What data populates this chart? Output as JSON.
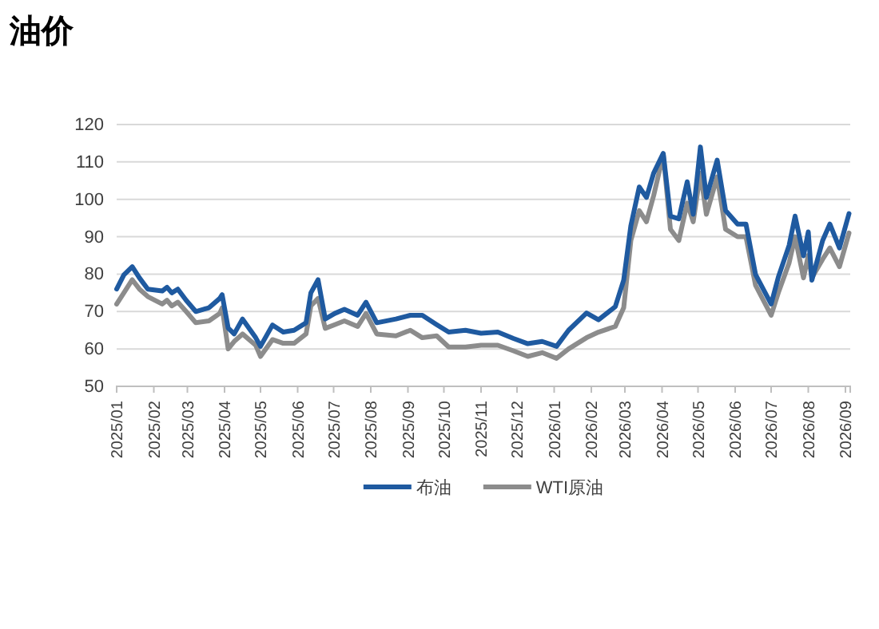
{
  "chart_data": {
    "type": "line",
    "title": "油价",
    "x": [
      "2025-01-01",
      "2025-01-07",
      "2025-01-14",
      "2025-01-20",
      "2025-01-27",
      "2025-02-08",
      "2025-02-12",
      "2025-02-16",
      "2025-02-21",
      "2025-02-28",
      "2025-03-08",
      "2025-03-19",
      "2025-03-28",
      "2025-03-30",
      "2025-04-04",
      "2025-04-09",
      "2025-04-16",
      "2025-04-27",
      "2025-05-01",
      "2025-05-11",
      "2025-05-20",
      "2025-05-29",
      "2025-06-08",
      "2025-06-12",
      "2025-06-18",
      "2025-06-24",
      "2025-07-02",
      "2025-07-10",
      "2025-07-21",
      "2025-07-28",
      "2025-08-06",
      "2025-08-22",
      "2025-09-03",
      "2025-09-13",
      "2025-09-25",
      "2025-10-05",
      "2025-10-19",
      "2025-11-01",
      "2025-11-15",
      "2025-11-28",
      "2025-12-10",
      "2025-12-22",
      "2026-01-03",
      "2026-01-13",
      "2026-01-28",
      "2026-02-07",
      "2026-02-21",
      "2026-02-28",
      "2026-03-06",
      "2026-03-13",
      "2026-03-19",
      "2026-03-25",
      "2026-04-02",
      "2026-04-08",
      "2026-04-15",
      "2026-04-22",
      "2026-04-27",
      "2026-05-03",
      "2026-05-08",
      "2026-05-17",
      "2026-05-24",
      "2026-06-03",
      "2026-06-10",
      "2026-06-18",
      "2026-07-01",
      "2026-07-07",
      "2026-07-16",
      "2026-07-21",
      "2026-07-28",
      "2026-08-01",
      "2026-08-04",
      "2026-08-13",
      "2026-08-19",
      "2026-08-27",
      "2026-09-04"
    ],
    "series": [
      {
        "name": "布油",
        "color": "#1f5aa0",
        "values": [
          76,
          79.8,
          82,
          79,
          76,
          75.5,
          76.5,
          75,
          76,
          73,
          70,
          71,
          73.5,
          74.5,
          65.6,
          64,
          68,
          63,
          60.7,
          66.4,
          64.5,
          65,
          67,
          75,
          78.5,
          68,
          69.5,
          70.6,
          69,
          72.5,
          67,
          68,
          69,
          69,
          66.5,
          64.5,
          65,
          64.2,
          64.5,
          62.8,
          61.4,
          62,
          60.7,
          65,
          69.6,
          67.8,
          71.3,
          78.4,
          93,
          103.3,
          100.5,
          107,
          112.3,
          95.5,
          94.8,
          104.7,
          96,
          114,
          100.5,
          110.5,
          97,
          93.4,
          93.4,
          79.9,
          72,
          79.2,
          87.7,
          95.5,
          84.9,
          91.3,
          78.4,
          89,
          93.4,
          87,
          96.2
        ]
      },
      {
        "name": "WTI原油",
        "color": "#8c8c8c",
        "values": [
          72,
          75,
          78.5,
          76,
          74,
          72,
          73,
          71.5,
          72.5,
          70,
          67,
          67.5,
          69.5,
          71,
          60,
          62,
          64,
          61,
          58,
          62.5,
          61.5,
          61.5,
          64,
          71.5,
          73.5,
          65.5,
          66.5,
          67.5,
          66,
          69.5,
          64,
          63.5,
          65,
          63,
          63.5,
          60.5,
          60.5,
          61,
          61,
          59.5,
          58,
          59,
          57.5,
          60,
          63,
          64.5,
          66,
          71,
          89,
          97,
          94,
          101,
          112,
          92,
          89,
          99,
          94,
          107,
          96,
          106,
          92,
          90,
          90,
          77,
          69,
          75,
          83,
          90,
          79,
          85,
          79,
          84,
          87,
          82,
          91
        ]
      }
    ],
    "xlim": [
      "2025-01-01",
      "2026-09-05"
    ],
    "xticks": [
      {
        "value": "2025-01-01",
        "label": "2025/01"
      },
      {
        "value": "2025-02-01",
        "label": "2025/02"
      },
      {
        "value": "2025-03-01",
        "label": "2025/03"
      },
      {
        "value": "2025-04-01",
        "label": "2025/04"
      },
      {
        "value": "2025-05-01",
        "label": "2025/05"
      },
      {
        "value": "2025-06-01",
        "label": "2025/06"
      },
      {
        "value": "2025-07-01",
        "label": "2025/07"
      },
      {
        "value": "2025-08-01",
        "label": "2025/08"
      },
      {
        "value": "2025-09-01",
        "label": "2025/09"
      },
      {
        "value": "2025-10-01",
        "label": "2025/10"
      },
      {
        "value": "2025-11-01",
        "label": "2025/11"
      },
      {
        "value": "2025-12-01",
        "label": "2025/12"
      },
      {
        "value": "2026-01-01",
        "label": "2026/01"
      },
      {
        "value": "2026-02-01",
        "label": "2026/02"
      },
      {
        "value": "2026-03-01",
        "label": "2026/03"
      },
      {
        "value": "2026-04-01",
        "label": "2026/04"
      },
      {
        "value": "2026-05-01",
        "label": "2026/05"
      },
      {
        "value": "2026-06-01",
        "label": "2026/06"
      },
      {
        "value": "2026-07-01",
        "label": "2026/07"
      },
      {
        "value": "2026-08-01",
        "label": "2026/08"
      },
      {
        "value": "2026-09-01",
        "label": "2026/09"
      }
    ],
    "ylim": [
      50,
      120
    ],
    "yticks": [
      50,
      60,
      70,
      80,
      90,
      100,
      110,
      120
    ],
    "grid": "y",
    "legend": "bottom",
    "marker": "none",
    "line_style": "solid"
  }
}
